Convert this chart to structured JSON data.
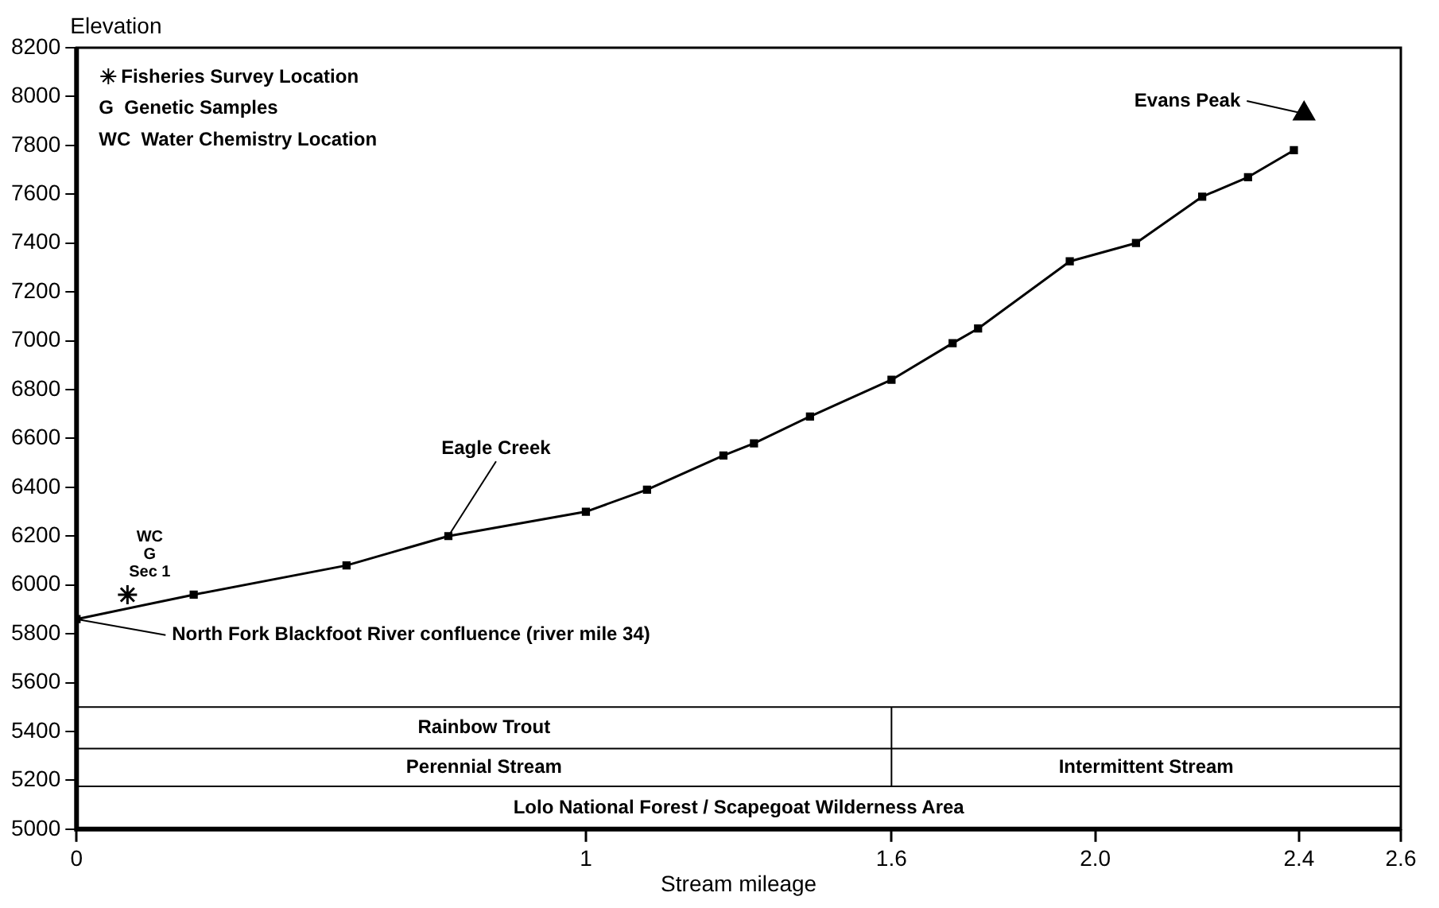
{
  "chart_data": {
    "type": "line",
    "xlabel": "Stream mileage",
    "ylabel": "Elevation",
    "xlim": [
      0,
      2.6
    ],
    "xticks": [
      0,
      1,
      1.6,
      {
        "value": 2.0,
        "label": "2.0"
      },
      {
        "value": 2.4,
        "label": "2.4"
      },
      2.6
    ],
    "ylim": [
      5000,
      8200
    ],
    "yticks": [
      5000,
      5200,
      5400,
      5600,
      5800,
      6000,
      6200,
      6400,
      6600,
      6800,
      7000,
      7200,
      7400,
      7600,
      7800,
      8000,
      8200
    ],
    "grid": false,
    "legend": "top left",
    "series": [
      {
        "color": "#000000",
        "marker": "square",
        "line_style": "solid",
        "x": [
          0,
          0.23,
          0.53,
          0.73,
          1.0,
          1.12,
          1.27,
          1.33,
          1.44,
          1.6,
          1.72,
          1.77,
          1.95,
          2.08,
          2.21,
          2.3,
          2.39
        ],
        "values": [
          5860,
          5960,
          6080,
          6200,
          6300,
          6390,
          6530,
          6580,
          6690,
          6840,
          6990,
          7050,
          7325,
          7400,
          7590,
          7670,
          7780
        ]
      },
      {
        "type": "scatter",
        "name": "Fisheries Survey Location",
        "color": "#000000",
        "marker": "cross",
        "x": [
          0.1
        ],
        "values": [
          5960
        ]
      },
      {
        "type": "scatter",
        "color": "#000000",
        "marker": "triangle",
        "x": [
          2.41
        ],
        "values": [
          7930
        ]
      }
    ],
    "ref_lines": [
      {
        "axis": "y",
        "value": 5500,
        "color": "#000000"
      },
      {
        "axis": "y",
        "value": 5330,
        "color": "#000000"
      },
      {
        "axis": "y",
        "value": 5175,
        "color": "#000000"
      },
      {
        "axis": "x",
        "value": 1.6,
        "color": "#000000"
      }
    ],
    "annotations": [
      "G  Genetic Samples",
      "WC  Water Chemistry Location",
      "Rainbow Trout",
      "Perennial Stream",
      "Intermittent Stream",
      "Lolo National Forest / Scapegoat Wilderness Area",
      "WC",
      "G",
      "Sec 1",
      {
        "text": "Eagle Creek",
        "x": 0.73,
        "y": 6200
      },
      {
        "text": "North Fork Blackfoot River confluence (river mile 34)",
        "x": 0,
        "y": 5860
      },
      {
        "text": "Evans Peak",
        "x": 2.41,
        "y": 7930
      }
    ]
  }
}
